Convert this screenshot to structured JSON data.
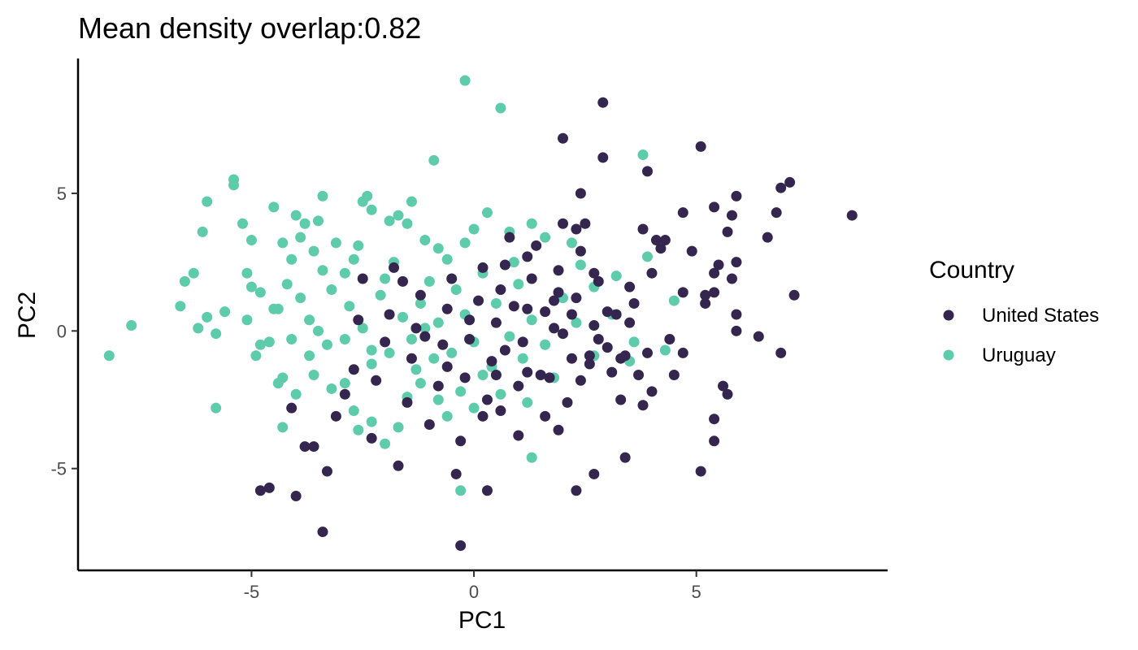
{
  "chart_data": {
    "type": "scatter",
    "title": "Mean density overlap:0.82",
    "xlabel": "PC1",
    "ylabel": "PC2",
    "xlim": [
      -8.9,
      9.3
    ],
    "ylim": [
      -8.7,
      9.9
    ],
    "x_ticks": [
      -5,
      0,
      5
    ],
    "y_ticks": [
      -5,
      0,
      5
    ],
    "grid": false,
    "legend": {
      "title": "Country",
      "position": "right"
    },
    "series": [
      {
        "name": "United States",
        "color": "#35264f",
        "points": [
          [
            8.5,
            4.2
          ],
          [
            7.1,
            5.4
          ],
          [
            6.9,
            5.2
          ],
          [
            6.8,
            4.3
          ],
          [
            6.6,
            3.4
          ],
          [
            7.2,
            1.3
          ],
          [
            6.9,
            -0.8
          ],
          [
            6.4,
            -0.2
          ],
          [
            5.9,
            4.9
          ],
          [
            5.8,
            4.2
          ],
          [
            5.7,
            3.6
          ],
          [
            5.9,
            2.5
          ],
          [
            5.8,
            1.9
          ],
          [
            5.9,
            0.6
          ],
          [
            5.9,
            0.0
          ],
          [
            5.7,
            -2.3
          ],
          [
            5.4,
            4.5
          ],
          [
            5.5,
            2.4
          ],
          [
            5.4,
            2.1
          ],
          [
            5.4,
            1.4
          ],
          [
            5.2,
            1.3
          ],
          [
            5.2,
            1.0
          ],
          [
            5.1,
            6.7
          ],
          [
            5.1,
            -5.1
          ],
          [
            5.4,
            -3.2
          ],
          [
            5.4,
            -4.0
          ],
          [
            5.6,
            -2.0
          ],
          [
            4.9,
            2.9
          ],
          [
            4.7,
            4.3
          ],
          [
            4.7,
            1.4
          ],
          [
            4.7,
            -0.8
          ],
          [
            4.5,
            -1.6
          ],
          [
            4.4,
            -0.3
          ],
          [
            4.3,
            3.3
          ],
          [
            4.1,
            3.3
          ],
          [
            4.2,
            3.0
          ],
          [
            4.0,
            2.1
          ],
          [
            3.9,
            5.8
          ],
          [
            3.8,
            3.7
          ],
          [
            3.9,
            -0.8
          ],
          [
            3.8,
            -2.7
          ],
          [
            3.6,
            1.0
          ],
          [
            3.5,
            0.3
          ],
          [
            3.4,
            -0.9
          ],
          [
            3.5,
            1.6
          ],
          [
            3.3,
            -2.5
          ],
          [
            3.4,
            -4.6
          ],
          [
            3.2,
            0.6
          ],
          [
            3.0,
            0.7
          ],
          [
            2.9,
            8.3
          ],
          [
            2.9,
            6.3
          ],
          [
            2.8,
            1.8
          ],
          [
            2.7,
            0.2
          ],
          [
            2.8,
            -0.3
          ],
          [
            2.7,
            -5.2
          ],
          [
            2.6,
            -0.9
          ],
          [
            2.5,
            3.9
          ],
          [
            2.4,
            5.0
          ],
          [
            2.3,
            3.7
          ],
          [
            2.4,
            2.9
          ],
          [
            2.3,
            1.2
          ],
          [
            2.2,
            0.6
          ],
          [
            2.2,
            -1.0
          ],
          [
            2.1,
            -2.6
          ],
          [
            2.3,
            -5.8
          ],
          [
            2.0,
            7.0
          ],
          [
            2.0,
            3.9
          ],
          [
            1.9,
            2.2
          ],
          [
            1.9,
            1.4
          ],
          [
            1.8,
            0.1
          ],
          [
            1.7,
            -1.7
          ],
          [
            1.6,
            -3.1
          ],
          [
            1.4,
            3.1
          ],
          [
            1.3,
            1.9
          ],
          [
            1.2,
            0.8
          ],
          [
            1.1,
            -0.4
          ],
          [
            1.0,
            -2.0
          ],
          [
            1.0,
            -3.8
          ],
          [
            0.8,
            3.4
          ],
          [
            0.7,
            2.4
          ],
          [
            0.6,
            1.5
          ],
          [
            0.5,
            0.3
          ],
          [
            0.4,
            -1.1
          ],
          [
            0.3,
            -2.5
          ],
          [
            0.3,
            -5.8
          ],
          [
            0.2,
            2.3
          ],
          [
            0.1,
            1.1
          ],
          [
            -0.1,
            -0.3
          ],
          [
            -0.2,
            -1.7
          ],
          [
            -0.3,
            -4.0
          ],
          [
            -0.4,
            -5.2
          ],
          [
            -0.3,
            -7.8
          ],
          [
            -0.5,
            1.9
          ],
          [
            -0.6,
            0.8
          ],
          [
            -0.7,
            -0.5
          ],
          [
            -0.8,
            -2.0
          ],
          [
            -1.0,
            -3.4
          ],
          [
            -1.2,
            1.3
          ],
          [
            -1.3,
            0.1
          ],
          [
            -1.4,
            -1.0
          ],
          [
            -1.5,
            -2.6
          ],
          [
            -1.7,
            -4.9
          ],
          [
            -1.8,
            2.3
          ],
          [
            -1.9,
            0.6
          ],
          [
            -2.0,
            -0.4
          ],
          [
            -2.2,
            -1.8
          ],
          [
            -2.3,
            -3.9
          ],
          [
            -2.5,
            1.9
          ],
          [
            -2.6,
            0.4
          ],
          [
            -2.7,
            -1.4
          ],
          [
            -2.9,
            -2.3
          ],
          [
            -3.1,
            -3.1
          ],
          [
            -3.6,
            -4.2
          ],
          [
            -3.8,
            -4.2
          ],
          [
            -4.1,
            -2.8
          ],
          [
            -4.0,
            -6.0
          ],
          [
            -4.6,
            -5.7
          ],
          [
            -4.8,
            -5.8
          ],
          [
            -3.4,
            -7.3
          ],
          [
            -3.3,
            -5.1
          ],
          [
            0.7,
            -0.7
          ],
          [
            1.5,
            -1.6
          ],
          [
            2.6,
            -1.2
          ],
          [
            3.1,
            -1.5
          ],
          [
            3.7,
            -1.6
          ],
          [
            4.0,
            -2.2
          ],
          [
            1.2,
            -1.5
          ],
          [
            0.9,
            0.9
          ],
          [
            1.6,
            0.7
          ],
          [
            2.0,
            -0.1
          ],
          [
            0.5,
            -1.6
          ],
          [
            -0.1,
            0.4
          ],
          [
            1.8,
            1.1
          ],
          [
            2.4,
            -1.8
          ],
          [
            3.0,
            -0.6
          ],
          [
            1.2,
            2.7
          ],
          [
            0.6,
            -2.9
          ],
          [
            1.9,
            -3.6
          ],
          [
            2.7,
            2.1
          ],
          [
            3.3,
            -1.0
          ],
          [
            -0.6,
            -1.3
          ],
          [
            -1.1,
            -0.2
          ],
          [
            -1.6,
            1.8
          ],
          [
            0.2,
            -3.1
          ]
        ]
      },
      {
        "name": "Uruguay",
        "color": "#5ecbaa",
        "points": [
          [
            -0.2,
            9.1
          ],
          [
            0.6,
            8.1
          ],
          [
            -0.9,
            6.2
          ],
          [
            3.8,
            6.4
          ],
          [
            -5.4,
            5.5
          ],
          [
            -5.4,
            5.3
          ],
          [
            -6.0,
            4.7
          ],
          [
            -5.2,
            3.9
          ],
          [
            -6.1,
            3.6
          ],
          [
            -4.5,
            4.5
          ],
          [
            -3.4,
            4.9
          ],
          [
            -2.4,
            4.9
          ],
          [
            -2.5,
            4.7
          ],
          [
            -1.4,
            4.7
          ],
          [
            -2.3,
            4.4
          ],
          [
            -4.0,
            4.2
          ],
          [
            -3.8,
            3.9
          ],
          [
            -3.5,
            4.0
          ],
          [
            -5.0,
            3.3
          ],
          [
            -4.3,
            3.2
          ],
          [
            -3.9,
            3.4
          ],
          [
            -3.6,
            2.9
          ],
          [
            -3.1,
            3.2
          ],
          [
            -2.6,
            3.1
          ],
          [
            -1.9,
            4.0
          ],
          [
            -1.7,
            4.2
          ],
          [
            -1.5,
            3.9
          ],
          [
            -1.1,
            3.3
          ],
          [
            -0.8,
            3.0
          ],
          [
            0.0,
            3.7
          ],
          [
            0.3,
            4.3
          ],
          [
            0.8,
            3.6
          ],
          [
            1.3,
            3.9
          ],
          [
            1.6,
            3.4
          ],
          [
            2.2,
            3.2
          ],
          [
            2.4,
            2.4
          ],
          [
            3.2,
            2.0
          ],
          [
            3.9,
            2.7
          ],
          [
            4.5,
            1.1
          ],
          [
            -6.3,
            2.1
          ],
          [
            -6.5,
            1.8
          ],
          [
            -5.1,
            2.1
          ],
          [
            -5.0,
            1.6
          ],
          [
            -4.8,
            1.4
          ],
          [
            -4.5,
            0.8
          ],
          [
            -5.6,
            0.7
          ],
          [
            -6.0,
            0.5
          ],
          [
            -6.6,
            0.9
          ],
          [
            -6.2,
            0.1
          ],
          [
            -5.8,
            -0.1
          ],
          [
            -5.1,
            0.4
          ],
          [
            -4.8,
            -0.5
          ],
          [
            -4.9,
            -0.9
          ],
          [
            -4.6,
            -0.4
          ],
          [
            -4.4,
            0.8
          ],
          [
            -4.2,
            1.7
          ],
          [
            -3.9,
            1.2
          ],
          [
            -3.7,
            0.4
          ],
          [
            -3.5,
            0.0
          ],
          [
            -3.3,
            -0.5
          ],
          [
            -3.2,
            1.5
          ],
          [
            -2.9,
            2.1
          ],
          [
            -2.8,
            0.9
          ],
          [
            -2.5,
            0.1
          ],
          [
            -2.3,
            -0.7
          ],
          [
            -2.1,
            1.3
          ],
          [
            -1.8,
            2.5
          ],
          [
            -1.6,
            0.5
          ],
          [
            -1.4,
            -0.3
          ],
          [
            -1.2,
            1.0
          ],
          [
            -1.0,
            1.8
          ],
          [
            -0.8,
            0.3
          ],
          [
            -0.6,
            2.6
          ],
          [
            -0.4,
            1.5
          ],
          [
            -0.2,
            0.6
          ],
          [
            0.0,
            -0.4
          ],
          [
            0.2,
            2.1
          ],
          [
            0.5,
            1.0
          ],
          [
            0.8,
            -0.2
          ],
          [
            1.0,
            1.7
          ],
          [
            1.3,
            0.4
          ],
          [
            1.6,
            -0.5
          ],
          [
            2.0,
            1.2
          ],
          [
            2.3,
            0.3
          ],
          [
            2.7,
            -0.9
          ],
          [
            3.1,
            0.6
          ],
          [
            3.6,
            -0.4
          ],
          [
            4.3,
            -0.7
          ],
          [
            -7.7,
            0.2
          ],
          [
            -8.2,
            -0.9
          ],
          [
            -5.8,
            -2.8
          ],
          [
            -4.3,
            -1.7
          ],
          [
            -4.3,
            -3.5
          ],
          [
            -4.0,
            -2.3
          ],
          [
            -3.6,
            -1.6
          ],
          [
            -3.2,
            -2.1
          ],
          [
            -2.9,
            -1.9
          ],
          [
            -2.7,
            -2.9
          ],
          [
            -2.6,
            -3.6
          ],
          [
            -2.3,
            -3.3
          ],
          [
            -2.0,
            -4.1
          ],
          [
            -1.7,
            -3.5
          ],
          [
            -1.5,
            -2.4
          ],
          [
            -1.2,
            -1.9
          ],
          [
            -0.8,
            -2.5
          ],
          [
            -0.6,
            -3.1
          ],
          [
            -0.3,
            -2.2
          ],
          [
            -0.3,
            -5.8
          ],
          [
            0.2,
            -1.6
          ],
          [
            0.6,
            -2.3
          ],
          [
            1.2,
            -2.6
          ],
          [
            1.3,
            -4.6
          ],
          [
            1.8,
            -1.7
          ],
          [
            -2.3,
            -1.2
          ],
          [
            -1.9,
            -0.8
          ],
          [
            -3.7,
            -0.9
          ],
          [
            -4.1,
            -0.3
          ],
          [
            -0.9,
            -1.0
          ],
          [
            -1.3,
            -1.4
          ],
          [
            -0.5,
            -0.8
          ],
          [
            0.4,
            -1.3
          ],
          [
            1.1,
            -1.0
          ],
          [
            -2.7,
            2.6
          ],
          [
            -3.4,
            2.2
          ],
          [
            -4.1,
            2.6
          ],
          [
            -2.0,
            1.9
          ],
          [
            -0.2,
            3.2
          ],
          [
            0.9,
            2.5
          ],
          [
            2.7,
            1.6
          ],
          [
            -1.1,
            0.1
          ],
          [
            -2.9,
            -0.3
          ],
          [
            -4.4,
            -1.9
          ],
          [
            0.0,
            -2.8
          ],
          [
            3.5,
            -1.1
          ]
        ]
      }
    ]
  }
}
